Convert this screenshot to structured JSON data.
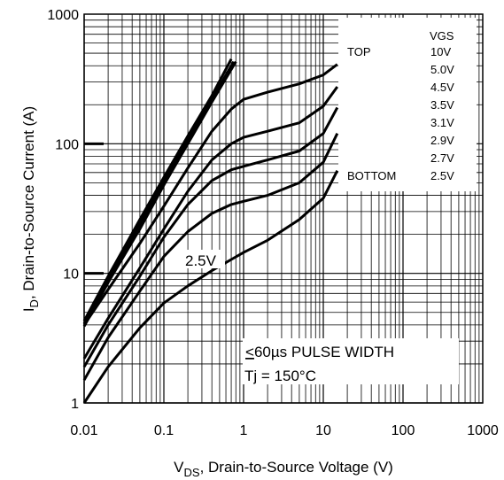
{
  "chart_data": {
    "type": "line",
    "xscale": "log",
    "yscale": "log",
    "xlim": [
      0.01,
      1000
    ],
    "ylim": [
      1,
      1000
    ],
    "grid": true,
    "xticks": [
      "0.01",
      "0.1",
      "1",
      "10",
      "100",
      "1000"
    ],
    "yticks": [
      "1",
      "10",
      "100",
      "1000"
    ],
    "xlabel": {
      "main": "V",
      "sub": "DS",
      "rest": ", Drain-to-Source Voltage (V)"
    },
    "ylabel": {
      "main": "I",
      "sub": "D",
      "rest": ", Drain-to-Source Current (A)"
    },
    "legend": {
      "header": "VGS",
      "top_word": "TOP",
      "bottom_word": "BOTTOM",
      "entries": [
        "10V",
        "5.0V",
        "4.5V",
        "3.5V",
        "3.1V",
        "2.9V",
        "2.7V",
        "2.5V"
      ]
    },
    "annotations": {
      "pulse_prefix": "<",
      "pulse": "60µs PULSE WIDTH",
      "tj": "Tj = 150°C",
      "curve_label": "2.5V"
    },
    "series": [
      {
        "x": [
          0.01,
          0.02,
          0.05,
          0.1,
          0.2,
          0.4,
          0.7
        ],
        "y": [
          4.3,
          9.5,
          26,
          55,
          115,
          235,
          450
        ]
      },
      {
        "x": [
          0.01,
          0.02,
          0.05,
          0.1,
          0.2,
          0.4,
          0.75
        ],
        "y": [
          4.1,
          9,
          24,
          52,
          108,
          220,
          430
        ]
      },
      {
        "x": [
          0.01,
          0.02,
          0.05,
          0.1,
          0.2,
          0.4,
          0.8
        ],
        "y": [
          3.9,
          8.5,
          22,
          48,
          100,
          210,
          430
        ]
      },
      {
        "x": [
          0.01,
          0.02,
          0.05,
          0.1,
          0.2,
          0.4,
          0.7,
          1,
          2,
          5,
          10,
          15
        ],
        "y": [
          4.0,
          7.5,
          17,
          33,
          65,
          125,
          185,
          220,
          250,
          290,
          340,
          410
        ]
      },
      {
        "x": [
          0.01,
          0.02,
          0.05,
          0.1,
          0.2,
          0.4,
          0.7,
          1,
          2,
          5,
          10,
          15
        ],
        "y": [
          2.2,
          4.5,
          11,
          22,
          43,
          75,
          100,
          112,
          125,
          145,
          195,
          275
        ]
      },
      {
        "x": [
          0.01,
          0.02,
          0.05,
          0.1,
          0.2,
          0.4,
          0.7,
          1,
          2,
          5,
          10,
          15
        ],
        "y": [
          1.9,
          4.0,
          9.5,
          19,
          34,
          52,
          63,
          67,
          75,
          88,
          120,
          190
        ]
      },
      {
        "x": [
          0.01,
          0.02,
          0.05,
          0.1,
          0.2,
          0.4,
          0.7,
          1,
          2,
          5,
          10,
          15
        ],
        "y": [
          1.5,
          3.2,
          7.3,
          13.5,
          21,
          29,
          34,
          36,
          40,
          50,
          72,
          120
        ]
      },
      {
        "x": [
          0.01,
          0.02,
          0.05,
          0.1,
          0.2,
          0.4,
          0.7,
          1,
          2,
          5,
          10,
          15
        ],
        "y": [
          1.0,
          1.9,
          3.8,
          5.9,
          8.0,
          10.5,
          12.8,
          14.5,
          18,
          26,
          38,
          62
        ]
      }
    ]
  }
}
